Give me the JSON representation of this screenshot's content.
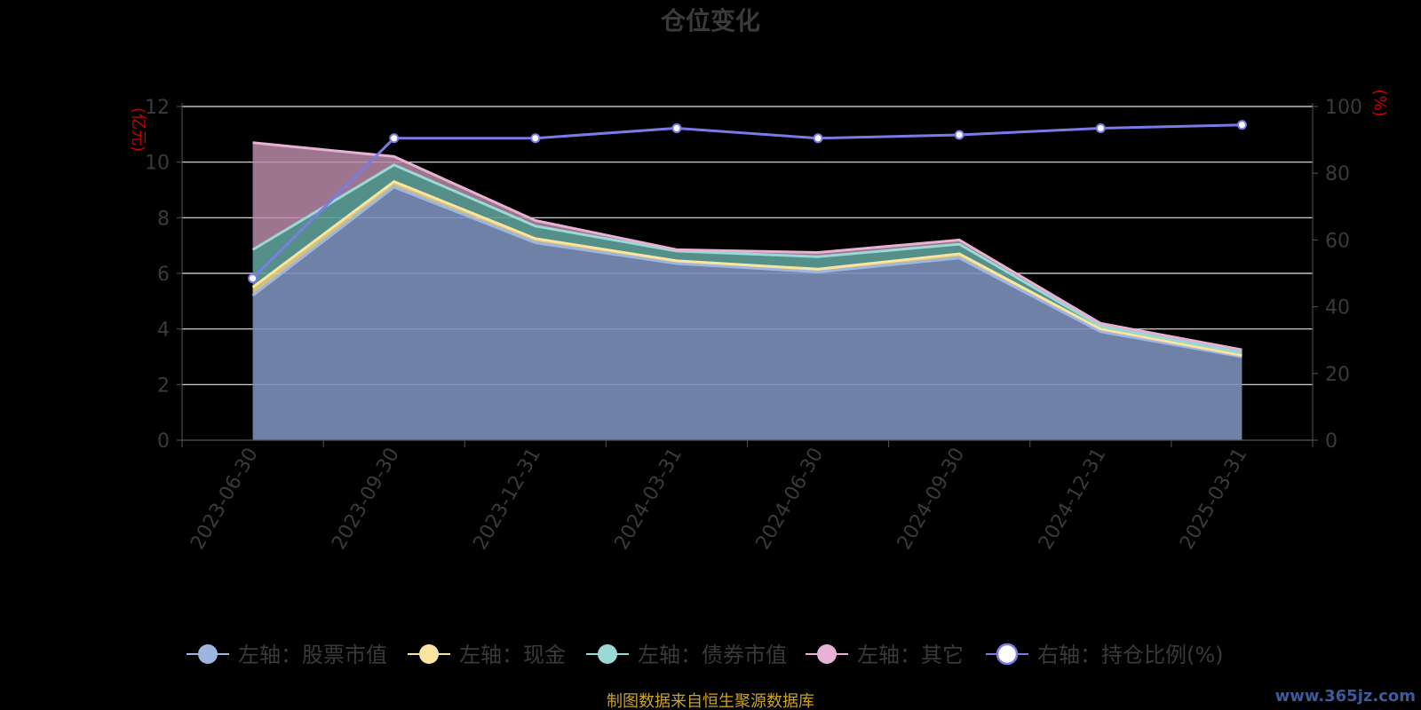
{
  "chart_data": {
    "type": "area",
    "title": "仓位变化",
    "left_axis_unit": "(亿元)",
    "right_axis_unit": "(%)",
    "categories": [
      "2023-06-30",
      "2023-09-30",
      "2023-12-31",
      "2024-03-31",
      "2024-06-30",
      "2024-09-30",
      "2024-12-31",
      "2025-03-31"
    ],
    "left_ylim": [
      0,
      12
    ],
    "left_ticks": [
      0,
      2,
      4,
      6,
      8,
      10,
      12
    ],
    "right_ylim": [
      0,
      100
    ],
    "right_ticks": [
      0,
      20,
      40,
      60,
      80,
      100
    ],
    "stacked": true,
    "series": [
      {
        "name": "左轴：股票市值",
        "axis": "left",
        "color": "#9db5e0",
        "values": [
          5.2,
          9.1,
          7.1,
          6.35,
          6.05,
          6.55,
          3.9,
          3.0
        ]
      },
      {
        "name": "左轴：现金",
        "axis": "left",
        "color": "#f9e4a0",
        "values": [
          0.3,
          0.2,
          0.15,
          0.1,
          0.1,
          0.15,
          0.1,
          0.05
        ]
      },
      {
        "name": "左轴：债券市值",
        "axis": "left",
        "color": "#9ad9d6",
        "values": [
          1.35,
          0.6,
          0.45,
          0.35,
          0.45,
          0.35,
          0.1,
          0.1
        ]
      },
      {
        "name": "左轴：其它",
        "axis": "left",
        "color": "#e8b2d4",
        "values": [
          3.85,
          0.3,
          0.2,
          0.05,
          0.15,
          0.15,
          0.1,
          0.1
        ]
      },
      {
        "name": "右轴：持仓比例(%)",
        "axis": "right",
        "type": "line",
        "color": "#7b7be8",
        "values": [
          48.5,
          90.5,
          90.5,
          93.5,
          90.5,
          91.5,
          93.5,
          94.5
        ]
      }
    ],
    "grid": true,
    "legend_position": "bottom"
  },
  "footer": {
    "source": "制图数据来自恒生聚源数据库",
    "watermark": "www.365jz.com"
  }
}
